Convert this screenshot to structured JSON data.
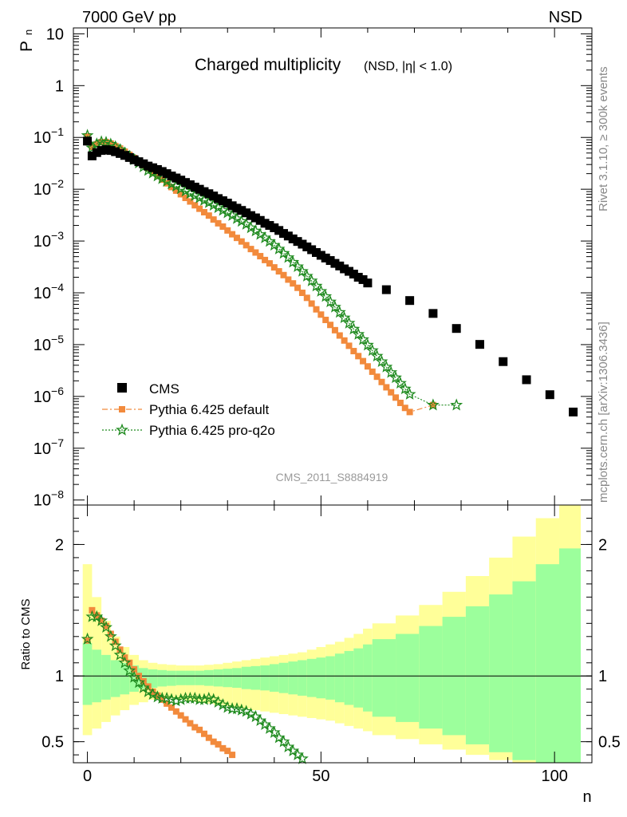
{
  "header": {
    "left": "7000 GeV pp",
    "right": "NSD"
  },
  "side_labels": {
    "rivet": "Rivet 3.1.10, ≥ 300k events",
    "mcplots": "mcplots.cern.ch [arXiv:1306.3436]"
  },
  "chart_data": [
    {
      "type": "scatter",
      "title": "Charged multiplicity",
      "subtitle": "(NSD, |η| < 1.0)",
      "ylabel": "P",
      "ylabel_sub": "n",
      "xlabel": "",
      "watermark": "CMS_2011_S8884919",
      "yscale": "log",
      "xlim": [
        -3,
        108
      ],
      "ylim": [
        8e-09,
        13
      ],
      "y_ticks": [
        {
          "v": 10,
          "label": "10"
        },
        {
          "v": 1,
          "label": "1"
        },
        {
          "v": 0.1,
          "label": "10",
          "exp": "−1"
        },
        {
          "v": 0.01,
          "label": "10",
          "exp": "−2"
        },
        {
          "v": 0.001,
          "label": "10",
          "exp": "−3"
        },
        {
          "v": 0.0001,
          "label": "10",
          "exp": "−4"
        },
        {
          "v": 1e-05,
          "label": "10",
          "exp": "−5"
        },
        {
          "v": 1e-06,
          "label": "10",
          "exp": "−6"
        },
        {
          "v": 1e-07,
          "label": "10",
          "exp": "−7"
        },
        {
          "v": 1e-08,
          "label": "10",
          "exp": "−8"
        }
      ],
      "legend": {
        "position": "bottom-left"
      },
      "series": [
        {
          "name": "CMS",
          "marker": "square",
          "color": "#000000",
          "x": [
            0,
            1,
            2,
            3,
            4,
            5,
            6,
            7,
            8,
            9,
            10,
            11,
            12,
            13,
            14,
            15,
            16,
            17,
            18,
            19,
            20,
            21,
            22,
            23,
            24,
            25,
            26,
            27,
            28,
            29,
            30,
            31,
            32,
            33,
            34,
            35,
            36,
            37,
            38,
            39,
            40,
            41,
            42,
            43,
            44,
            45,
            46,
            47,
            48,
            49,
            50,
            51,
            52,
            53,
            54,
            55,
            56,
            57,
            58,
            59,
            60,
            64,
            69,
            74,
            79,
            84,
            89,
            94,
            99,
            104
          ],
          "y": [
            0.085,
            0.044,
            0.051,
            0.056,
            0.058,
            0.056,
            0.053,
            0.049,
            0.045,
            0.041,
            0.037,
            0.034,
            0.031,
            0.028,
            0.026,
            0.024,
            0.022,
            0.02,
            0.018,
            0.0165,
            0.015,
            0.0135,
            0.0122,
            0.011,
            0.01,
            0.009,
            0.0082,
            0.0074,
            0.0066,
            0.006,
            0.0054,
            0.0048,
            0.0043,
            0.0039,
            0.0035,
            0.0031,
            0.0028,
            0.0025,
            0.0022,
            0.002,
            0.0018,
            0.0016,
            0.0014,
            0.00125,
            0.0011,
            0.00098,
            0.00087,
            0.00077,
            0.00068,
            0.0006,
            0.00053,
            0.00047,
            0.00042,
            0.00037,
            0.00033,
            0.00029,
            0.00026,
            0.00023,
            0.0002,
            0.00018,
            0.000155,
            0.000115,
            7.1e-05,
            4e-05,
            2.05e-05,
            1.01e-05,
            4.7e-06,
            2.1e-06,
            1.08e-06,
            5e-07
          ]
        },
        {
          "name": "Pythia 6.425 default",
          "marker": "square-small",
          "color": "#f28a3c",
          "line": "dashdot",
          "x": [
            0,
            1,
            2,
            3,
            4,
            5,
            6,
            7,
            8,
            9,
            10,
            11,
            12,
            13,
            14,
            15,
            16,
            17,
            18,
            19,
            20,
            21,
            22,
            23,
            24,
            25,
            26,
            27,
            28,
            29,
            30,
            31,
            32,
            33,
            34,
            35,
            36,
            37,
            38,
            39,
            40,
            41,
            42,
            43,
            44,
            45,
            46,
            47,
            48,
            49,
            50,
            51,
            52,
            53,
            54,
            55,
            56,
            57,
            58,
            59,
            60,
            61,
            62,
            63,
            64,
            65,
            66,
            67,
            68,
            69,
            74
          ],
          "y": [
            0.105,
            0.066,
            0.074,
            0.081,
            0.081,
            0.076,
            0.068,
            0.061,
            0.053,
            0.046,
            0.04,
            0.034,
            0.029,
            0.025,
            0.021,
            0.018,
            0.0153,
            0.013,
            0.011,
            0.0094,
            0.008,
            0.0068,
            0.0058,
            0.0049,
            0.0042,
            0.0036,
            0.0031,
            0.0026,
            0.0022,
            0.0019,
            0.0016,
            0.00135,
            0.00115,
            0.00098,
            0.00083,
            0.0007,
            0.0006,
            0.00051,
            0.00043,
            0.00037,
            0.00031,
            0.00026,
            0.00022,
            0.00018,
            0.000152,
            0.000125,
            0.0001,
            8e-05,
            6.2e-05,
            4.8e-05,
            3.8e-05,
            3e-05,
            2.4e-05,
            1.9e-05,
            1.5e-05,
            1.2e-05,
            9.5e-06,
            7.5e-06,
            6e-06,
            4.8e-06,
            3.8e-06,
            3e-06,
            2.4e-06,
            1.9e-06,
            1.5e-06,
            1.2e-06,
            9.5e-07,
            7.5e-07,
            6e-07,
            5e-07,
            6.8e-07
          ]
        },
        {
          "name": "Pythia 6.425 pro-q2o",
          "marker": "star",
          "color": "#1e8a1e",
          "line": "dotted",
          "x": [
            0,
            1,
            2,
            3,
            4,
            5,
            6,
            7,
            8,
            9,
            10,
            11,
            12,
            13,
            14,
            15,
            16,
            17,
            18,
            19,
            20,
            21,
            22,
            23,
            24,
            25,
            26,
            27,
            28,
            29,
            30,
            31,
            32,
            33,
            34,
            35,
            36,
            37,
            38,
            39,
            40,
            41,
            42,
            43,
            44,
            45,
            46,
            47,
            48,
            49,
            50,
            51,
            52,
            53,
            54,
            55,
            56,
            57,
            58,
            59,
            60,
            61,
            62,
            63,
            64,
            65,
            66,
            67,
            68,
            69,
            74,
            79
          ],
          "y": [
            0.109,
            0.063,
            0.075,
            0.082,
            0.08,
            0.074,
            0.066,
            0.058,
            0.05,
            0.043,
            0.037,
            0.032,
            0.027,
            0.023,
            0.0205,
            0.018,
            0.016,
            0.0142,
            0.0127,
            0.0114,
            0.0102,
            0.0092,
            0.0083,
            0.0075,
            0.0068,
            0.0061,
            0.0055,
            0.0049,
            0.0044,
            0.0039,
            0.0035,
            0.0031,
            0.0027,
            0.0024,
            0.0021,
            0.0018,
            0.00156,
            0.00134,
            0.00115,
            0.00098,
            0.00083,
            0.0007,
            0.00058,
            0.00048,
            0.00039,
            0.00032,
            0.00026,
            0.00021,
            0.00017,
            0.000135,
            0.000107,
            8.5e-05,
            6.7e-05,
            5.3e-05,
            4.2e-05,
            3.3e-05,
            2.6e-05,
            2e-05,
            1.58e-05,
            1.25e-05,
            9.8e-06,
            7.7e-06,
            6e-06,
            4.7e-06,
            3.7e-06,
            2.9e-06,
            2.3e-06,
            1.8e-06,
            1.4e-06,
            1.1e-06,
            6.8e-07,
            6.8e-07
          ]
        }
      ]
    },
    {
      "type": "scatter",
      "title": "",
      "ylabel": "Ratio to CMS",
      "xlabel": "n",
      "xlim": [
        -3,
        108
      ],
      "ylim": [
        0.34,
        2.3
      ],
      "y_ticks": [
        {
          "v": 0.5,
          "label": "0.5"
        },
        {
          "v": 1,
          "label": "1"
        },
        {
          "v": 2,
          "label": "2"
        }
      ],
      "x_ticks": [
        {
          "v": 0,
          "label": "0"
        },
        {
          "v": 50,
          "label": "50"
        },
        {
          "v": 100,
          "label": "100"
        }
      ],
      "reference_line": 1,
      "bands": {
        "colors": {
          "inner": "#9cff9c",
          "outer": "#ffff99"
        },
        "edges": [
          -1,
          1,
          3,
          5,
          7,
          9,
          11,
          13,
          15,
          17,
          19,
          21,
          23,
          25,
          27,
          29,
          31,
          33,
          35,
          37,
          39,
          41,
          43,
          45,
          47,
          49,
          51,
          53,
          55,
          57,
          59,
          61,
          66,
          71,
          76,
          81,
          86,
          91,
          96,
          101,
          106
        ],
        "inner_lo": [
          0.78,
          0.8,
          0.82,
          0.84,
          0.86,
          0.88,
          0.9,
          0.91,
          0.92,
          0.925,
          0.93,
          0.93,
          0.93,
          0.925,
          0.92,
          0.915,
          0.91,
          0.9,
          0.895,
          0.89,
          0.88,
          0.87,
          0.86,
          0.85,
          0.84,
          0.83,
          0.82,
          0.8,
          0.78,
          0.76,
          0.73,
          0.69,
          0.65,
          0.6,
          0.55,
          0.48,
          0.42,
          0.36,
          0.32,
          0.3
        ],
        "inner_hi": [
          1.25,
          1.2,
          1.16,
          1.12,
          1.1,
          1.08,
          1.06,
          1.05,
          1.045,
          1.04,
          1.04,
          1.04,
          1.04,
          1.045,
          1.05,
          1.055,
          1.06,
          1.07,
          1.075,
          1.08,
          1.09,
          1.1,
          1.11,
          1.12,
          1.13,
          1.14,
          1.15,
          1.17,
          1.19,
          1.21,
          1.24,
          1.28,
          1.32,
          1.38,
          1.45,
          1.53,
          1.62,
          1.72,
          1.85,
          1.97
        ],
        "outer_lo": [
          0.55,
          0.6,
          0.65,
          0.7,
          0.74,
          0.78,
          0.8,
          0.82,
          0.83,
          0.83,
          0.82,
          0.81,
          0.8,
          0.79,
          0.78,
          0.77,
          0.76,
          0.75,
          0.74,
          0.73,
          0.72,
          0.71,
          0.7,
          0.69,
          0.68,
          0.67,
          0.66,
          0.64,
          0.62,
          0.6,
          0.58,
          0.55,
          0.52,
          0.48,
          0.44,
          0.4,
          0.36,
          0.33,
          0.3,
          0.3
        ],
        "outer_hi": [
          1.85,
          1.6,
          1.42,
          1.3,
          1.22,
          1.16,
          1.12,
          1.1,
          1.09,
          1.085,
          1.08,
          1.08,
          1.08,
          1.085,
          1.09,
          1.1,
          1.11,
          1.12,
          1.13,
          1.14,
          1.15,
          1.16,
          1.17,
          1.18,
          1.2,
          1.22,
          1.24,
          1.26,
          1.29,
          1.32,
          1.36,
          1.4,
          1.46,
          1.54,
          1.64,
          1.76,
          1.9,
          2.06,
          2.2,
          2.3
        ]
      },
      "series": [
        {
          "name": "Pythia 6.425 default",
          "marker": "square-small",
          "color": "#f28a3c",
          "x": [
            0,
            1,
            2,
            3,
            4,
            5,
            6,
            7,
            8,
            9,
            10,
            11,
            12,
            13,
            14,
            15,
            16,
            17,
            18,
            19,
            20,
            21,
            22,
            23,
            24,
            25,
            26,
            27,
            28,
            29,
            30,
            31
          ],
          "y": [
            1.27,
            1.5,
            1.46,
            1.42,
            1.38,
            1.32,
            1.26,
            1.2,
            1.14,
            1.1,
            1.05,
            1.0,
            0.96,
            0.92,
            0.88,
            0.85,
            0.82,
            0.79,
            0.76,
            0.73,
            0.7,
            0.67,
            0.64,
            0.61,
            0.59,
            0.56,
            0.53,
            0.5,
            0.48,
            0.45,
            0.43,
            0.4
          ]
        },
        {
          "name": "Pythia 6.425 pro-q2o",
          "marker": "star",
          "color": "#1e8a1e",
          "x": [
            0,
            1,
            2,
            3,
            4,
            5,
            6,
            7,
            8,
            9,
            10,
            11,
            12,
            13,
            14,
            15,
            16,
            17,
            18,
            19,
            20,
            21,
            22,
            23,
            24,
            25,
            26,
            27,
            28,
            29,
            30,
            31,
            32,
            33,
            34,
            35,
            36,
            37,
            38,
            39,
            40,
            41,
            42,
            43,
            44,
            45,
            46
          ],
          "y": [
            1.28,
            1.45,
            1.45,
            1.42,
            1.37,
            1.3,
            1.23,
            1.16,
            1.1,
            1.04,
            0.99,
            0.95,
            0.91,
            0.88,
            0.86,
            0.84,
            0.83,
            0.83,
            0.82,
            0.81,
            0.82,
            0.83,
            0.83,
            0.83,
            0.82,
            0.82,
            0.83,
            0.82,
            0.8,
            0.78,
            0.76,
            0.75,
            0.75,
            0.74,
            0.73,
            0.71,
            0.69,
            0.66,
            0.63,
            0.6,
            0.57,
            0.53,
            0.5,
            0.46,
            0.43,
            0.4,
            0.37
          ]
        }
      ]
    }
  ]
}
